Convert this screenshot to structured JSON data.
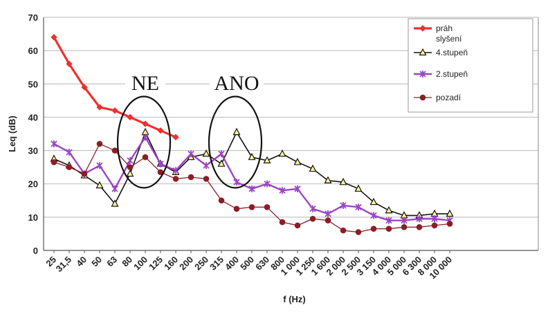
{
  "chart_data": {
    "type": "line",
    "xlabel": "f  (Hz)",
    "ylabel": "Leq  (dB)",
    "ylim": [
      0,
      70
    ],
    "yticks": [
      "0",
      "10",
      "20",
      "30",
      "40",
      "50",
      "60",
      "70"
    ],
    "grid": "horizontal",
    "legend_position": "top-right",
    "categories": [
      "25",
      "31,5",
      "40",
      "50",
      "63",
      "80",
      "100",
      "125",
      "160",
      "200",
      "250",
      "315",
      "400",
      "500",
      "630",
      "800",
      "1 000",
      "1 250",
      "1 600",
      "2 000",
      "2 500",
      "3 150",
      "4 000",
      "5 000",
      "6 300",
      "8 000",
      "10 000"
    ],
    "series": [
      {
        "name": "práh slyšení",
        "name_lines": [
          "práh",
          "slyšení"
        ],
        "color": "#ee3030",
        "marker": "diamond",
        "values": [
          64,
          56,
          49,
          43,
          42,
          40,
          38,
          36,
          34,
          null,
          null,
          null,
          null,
          null,
          null,
          null,
          null,
          null,
          null,
          null,
          null,
          null,
          null,
          null,
          null,
          null,
          null
        ]
      },
      {
        "name": "4.stupeň",
        "name_lines": [
          "4.stupeň"
        ],
        "color": "#111111",
        "marker": "triangle",
        "values": [
          27.5,
          25.5,
          22.5,
          19.5,
          14,
          23,
          35.5,
          26,
          23.5,
          28,
          29,
          26,
          35.5,
          28,
          27,
          29,
          26.5,
          24.5,
          21,
          20.5,
          18.5,
          14.5,
          12,
          10.5,
          10.5,
          11,
          11
        ]
      },
      {
        "name": "2.stupeň",
        "name_lines": [
          "2.stupeň"
        ],
        "color": "#9b44c4",
        "marker": "star",
        "values": [
          32,
          29.5,
          23,
          25.5,
          18.5,
          27,
          34,
          26,
          24,
          29,
          25.5,
          29,
          20.5,
          18.5,
          20,
          18,
          18.5,
          12.5,
          11,
          13.5,
          13,
          10.5,
          9,
          9,
          9.5,
          9.5,
          9
        ]
      },
      {
        "name": "pozadí",
        "name_lines": [
          "pozadí"
        ],
        "color": "#8b1e24",
        "marker": "circle",
        "values": [
          26.5,
          25,
          23,
          32,
          30,
          25,
          28,
          23.5,
          21.5,
          22,
          21.5,
          15,
          12.5,
          13,
          13,
          8.5,
          7.5,
          9.5,
          9,
          6,
          5.5,
          6.5,
          6.5,
          7,
          7,
          7.5,
          8
        ]
      }
    ],
    "annotations": [
      {
        "text": "NE",
        "category": "100",
        "value": 49
      },
      {
        "text": "ANO",
        "category": "400",
        "value": 49
      }
    ]
  }
}
